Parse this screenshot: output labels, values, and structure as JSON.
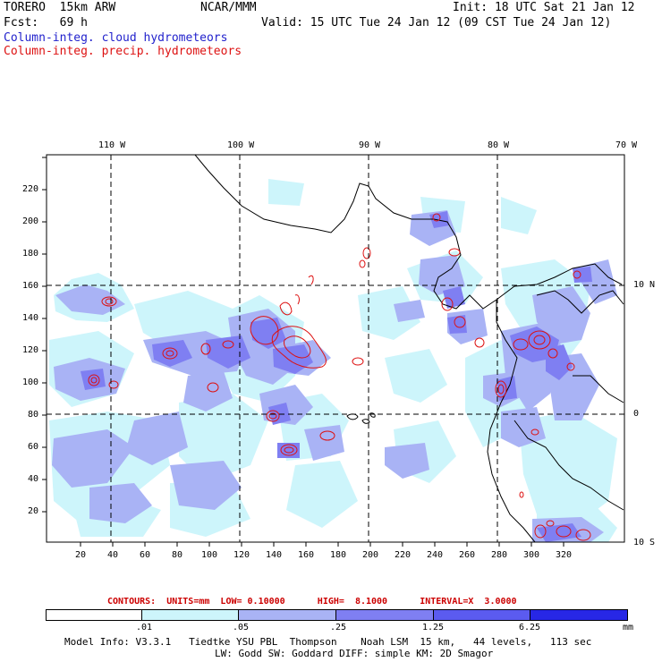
{
  "header": {
    "model": "TORERO  15km ARW",
    "org": "NCAR/MMM",
    "init": "Init: 18 UTC Sat 21 Jan 12",
    "fcst": "Fcst:   69 h",
    "valid": "Valid: 15 UTC Tue 24 Jan 12 (09 CST Tue 24 Jan 12)"
  },
  "fields": {
    "cloud": "Column-integ. cloud hydrometeors",
    "precip": "Column-integ. precip. hydrometeors"
  },
  "axes": {
    "lon_labels": [
      "110 W",
      "100 W",
      "90 W",
      "80 W",
      "70 W"
    ],
    "lat_labels": [
      "10 N",
      "0",
      "10 S"
    ],
    "x_ticks": [
      "20",
      "40",
      "60",
      "80",
      "100",
      "120",
      "140",
      "160",
      "180",
      "200",
      "220",
      "240",
      "260",
      "280",
      "300",
      "320"
    ],
    "y_ticks": [
      "20",
      "40",
      "60",
      "80",
      "100",
      "120",
      "140",
      "160",
      "180",
      "200",
      "220"
    ]
  },
  "contours_line": "CONTOURS:  UNITS=mm  LOW= 0.10000      HIGH=  8.1000      INTERVAL=X  3.0000",
  "colorbar": {
    "labels": [
      ".01",
      ".05",
      ".25",
      "1.25",
      "6.25"
    ],
    "units": "mm",
    "colors": [
      "#ffffff",
      "#cdf5fb",
      "#a9b3f5",
      "#7f7ff2",
      "#5b5bf0",
      "#2727e6"
    ]
  },
  "model_info": {
    "line1": "Model Info: V3.3.1   Tiedtke YSU PBL  Thompson    Noah LSM  15 km,   44 levels,   113 sec",
    "line2": "LW: Godd SW: Goddard DIFF: simple KM: 2D Smagor"
  }
}
